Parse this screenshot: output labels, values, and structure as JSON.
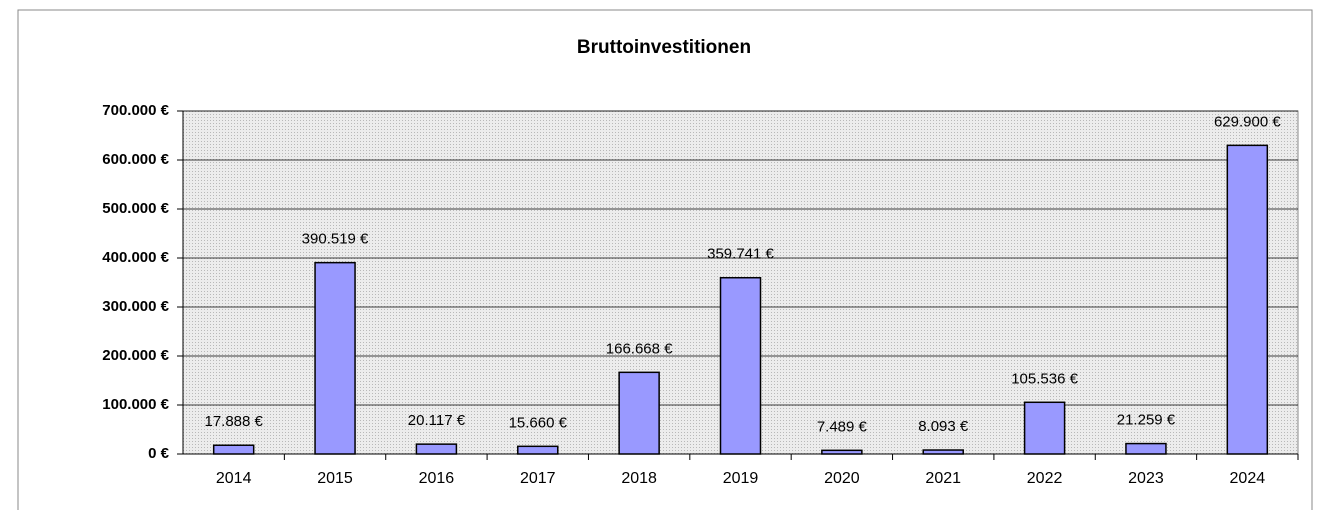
{
  "chart_data": {
    "type": "bar",
    "title": "Bruttoinvestitionen",
    "categories": [
      "2014",
      "2015",
      "2016",
      "2017",
      "2018",
      "2019",
      "2020",
      "2021",
      "2022",
      "2023",
      "2024"
    ],
    "values": [
      17888,
      390519,
      20117,
      15660,
      166668,
      359741,
      7489,
      8093,
      105536,
      21259,
      629900
    ],
    "value_labels": [
      "17.888 €",
      "390.519 €",
      "20.117 €",
      "15.660 €",
      "166.668 €",
      "359.741 €",
      "7.489 €",
      "8.093 €",
      "105.536 €",
      "21.259 €",
      "629.900 €"
    ],
    "color": "#9999ff",
    "ylim": [
      0,
      700000
    ],
    "yticks": [
      {
        "value": 0,
        "label": "0 €"
      },
      {
        "value": 100000,
        "label": "100.000 €"
      },
      {
        "value": 200000,
        "label": "200.000 €"
      },
      {
        "value": 300000,
        "label": "300.000 €"
      },
      {
        "value": 400000,
        "label": "400.000 €"
      },
      {
        "value": 500000,
        "label": "500.000 €"
      },
      {
        "value": 600000,
        "label": "600.000 €"
      },
      {
        "value": 700000,
        "label": "700.000 €"
      }
    ],
    "grid": true
  }
}
